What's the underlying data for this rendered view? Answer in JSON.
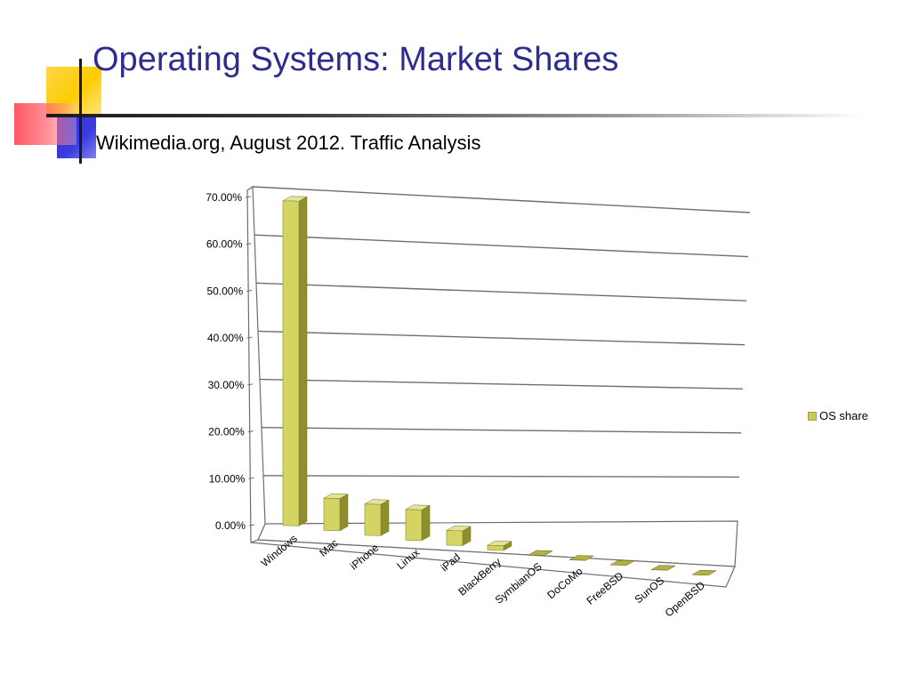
{
  "slide": {
    "title": "Operating Systems: Market Shares",
    "subtitle": "Wikimedia.org, August 2012. Traffic Analysis"
  },
  "colors": {
    "title": "#2d2d90",
    "bar_front": "#d4d465",
    "bar_side": "#8f8e2f",
    "bar_top": "#e4e49a",
    "grid": "#6e6e6e"
  },
  "chart_data": {
    "type": "bar",
    "title": "",
    "xlabel": "",
    "ylabel": "",
    "categories": [
      "Windows",
      "Mac",
      "iPhone",
      "Linux",
      "iPad",
      "BlackBerry",
      "SymbianOS",
      "DoCoMo",
      "FreeBSD",
      "SunOS",
      "OpenBSD"
    ],
    "series": [
      {
        "name": "OS share",
        "values": [
          68.5,
          6.8,
          6.6,
          6.5,
          3.1,
          1.0,
          0.0,
          0.0,
          0.0,
          0.0,
          0.0
        ]
      }
    ],
    "y_tick_labels": [
      "0.00%",
      "10.00%",
      "20.00%",
      "30.00%",
      "40.00%",
      "50.00%",
      "60.00%",
      "70.00%"
    ],
    "ylim": [
      0,
      70
    ],
    "grid": true,
    "legend_position": "right"
  }
}
